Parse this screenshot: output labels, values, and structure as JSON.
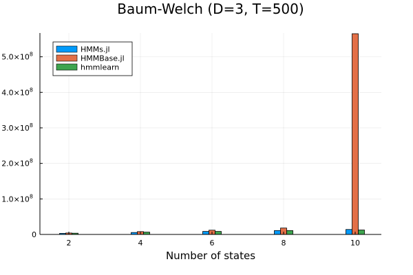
{
  "chart_data": {
    "type": "bar",
    "title": "Baum-Welch (D=3, T=500)",
    "xlabel": "Number of states",
    "ylabel": "",
    "categories": [
      "2",
      "4",
      "6",
      "8",
      "10"
    ],
    "series": [
      {
        "name": "HMMs.jl",
        "color": "#009AFA",
        "values": [
          3000000,
          5500000,
          8500000,
          11000000,
          14000000
        ]
      },
      {
        "name": "HMMBase.jl",
        "color": "#E36F47",
        "values": [
          4000000,
          8000000,
          12000000,
          18000000,
          565000000
        ]
      },
      {
        "name": "hmmlearn",
        "color": "#3EA44E",
        "values": [
          3500000,
          6500000,
          8500000,
          11000000,
          12500000
        ]
      }
    ],
    "ylim": [
      0,
      567000000
    ],
    "yticks": [
      {
        "value": 0,
        "label": "0"
      },
      {
        "value": 100000000,
        "label": "1.0×10",
        "exp": "8"
      },
      {
        "value": 200000000,
        "label": "2.0×10",
        "exp": "8"
      },
      {
        "value": 300000000,
        "label": "3.0×10",
        "exp": "8"
      },
      {
        "value": 400000000,
        "label": "4.0×10",
        "exp": "8"
      },
      {
        "value": 500000000,
        "label": "5.0×10",
        "exp": "8"
      }
    ],
    "grid": true,
    "legend_position": "top-left"
  }
}
